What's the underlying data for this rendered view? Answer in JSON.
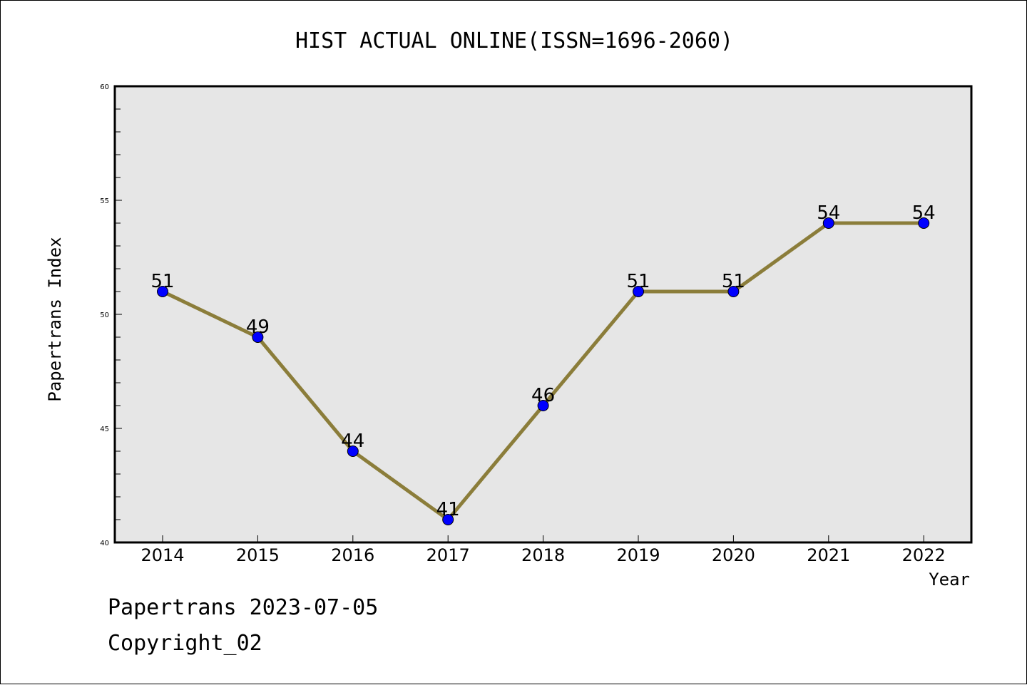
{
  "chart_data": {
    "type": "line",
    "title": "HIST ACTUAL ONLINE(ISSN=1696-2060)",
    "xlabel": "Year",
    "ylabel": "Papertrans Index",
    "categories": [
      "2014",
      "2015",
      "2016",
      "2017",
      "2018",
      "2019",
      "2020",
      "2021",
      "2022"
    ],
    "series": [
      {
        "values": [
          51,
          49,
          44,
          41,
          46,
          51,
          51,
          54,
          54
        ],
        "data_labels": [
          "51",
          "49",
          "44",
          "41",
          "46",
          "51",
          "51",
          "54",
          "54"
        ]
      }
    ],
    "ylim": [
      40,
      60
    ],
    "yticks": [
      "40",
      "45",
      "50",
      "55",
      "60"
    ],
    "grid": false,
    "legend": "none",
    "colors": {
      "line": "#8B7D3A",
      "marker": "#0000FF",
      "plot_background": "#E6E6E6"
    }
  },
  "footer": {
    "line1": "Papertrans 2023-07-05",
    "line2": "Copyright_02"
  }
}
